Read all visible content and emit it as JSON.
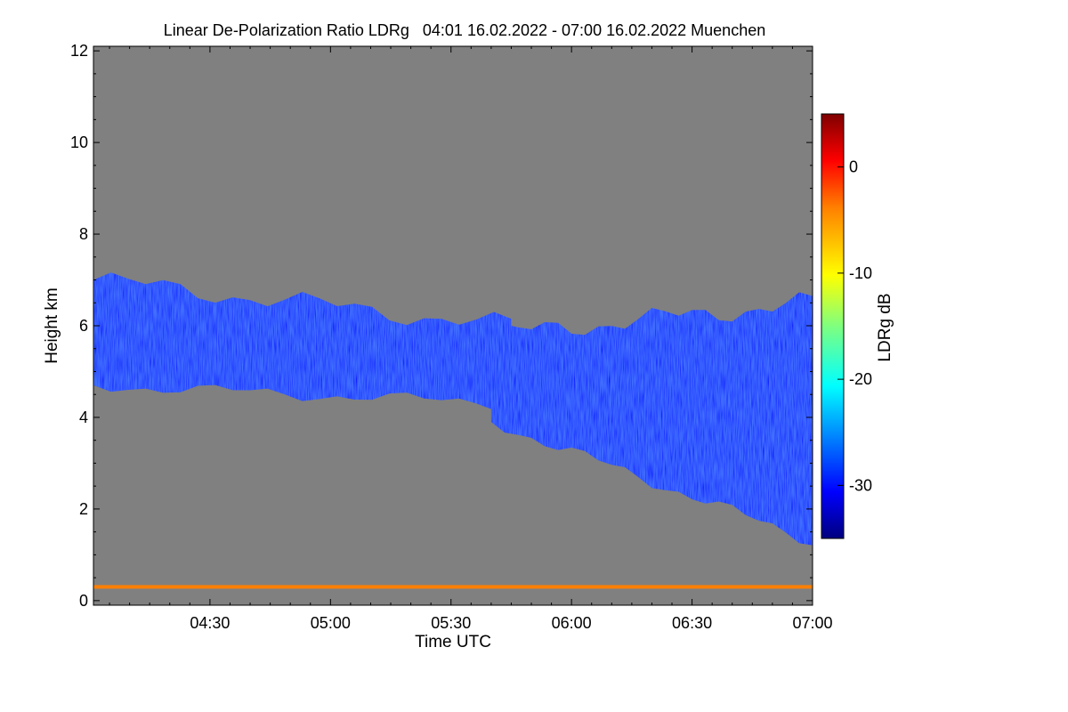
{
  "chart_data": {
    "type": "heatmap",
    "title": "Linear De-Polarization Ratio LDRg   04:01 16.02.2022 - 07:00 16.02.2022 Muenchen",
    "xlabel": "Time UTC",
    "ylabel": "Height km",
    "x_start": "04:01",
    "x_end": "07:00",
    "xlim_minutes_utc": [
      241,
      420
    ],
    "x_ticks": [
      {
        "minute": 270,
        "label": "04:30"
      },
      {
        "minute": 300,
        "label": "05:00"
      },
      {
        "minute": 330,
        "label": "05:30"
      },
      {
        "minute": 360,
        "label": "06:00"
      },
      {
        "minute": 390,
        "label": "06:30"
      },
      {
        "minute": 420,
        "label": "07:00"
      }
    ],
    "ylim_km": [
      -0.1,
      12.1
    ],
    "y_ticks": [
      0,
      2,
      4,
      6,
      8,
      10,
      12
    ],
    "colorbar": {
      "label": "LDRg dB",
      "range_db": [
        -35,
        5
      ],
      "ticks": [
        0,
        -10,
        -20,
        -30
      ],
      "colormap": "jet",
      "colors": [
        "#00007f",
        "#0000ff",
        "#007fff",
        "#00ffff",
        "#7fff7f",
        "#ffff00",
        "#ff7f00",
        "#ff0000",
        "#7f0000"
      ]
    },
    "background_color": "#808080",
    "regions": [
      {
        "name": "upper cloud layer (04:01-05:45)",
        "t_start": 241,
        "t_end": 345,
        "base_km_start": 4.7,
        "base_km_end": 4.3,
        "top_km_start": 7.0,
        "top_km_end": 6.0,
        "ldr_db": -29
      },
      {
        "name": "lower cloud layer (05:40-07:00)",
        "t_start": 340,
        "t_end": 420,
        "base_km_start": 3.9,
        "base_km_end": 1.3,
        "top_km_start": 5.8,
        "top_km_end": 6.5,
        "ldr_db": -30
      },
      {
        "name": "near-ground layer",
        "height_km": 0.3,
        "t_start": 241,
        "t_end": 420,
        "ldr_db": -5
      }
    ]
  }
}
